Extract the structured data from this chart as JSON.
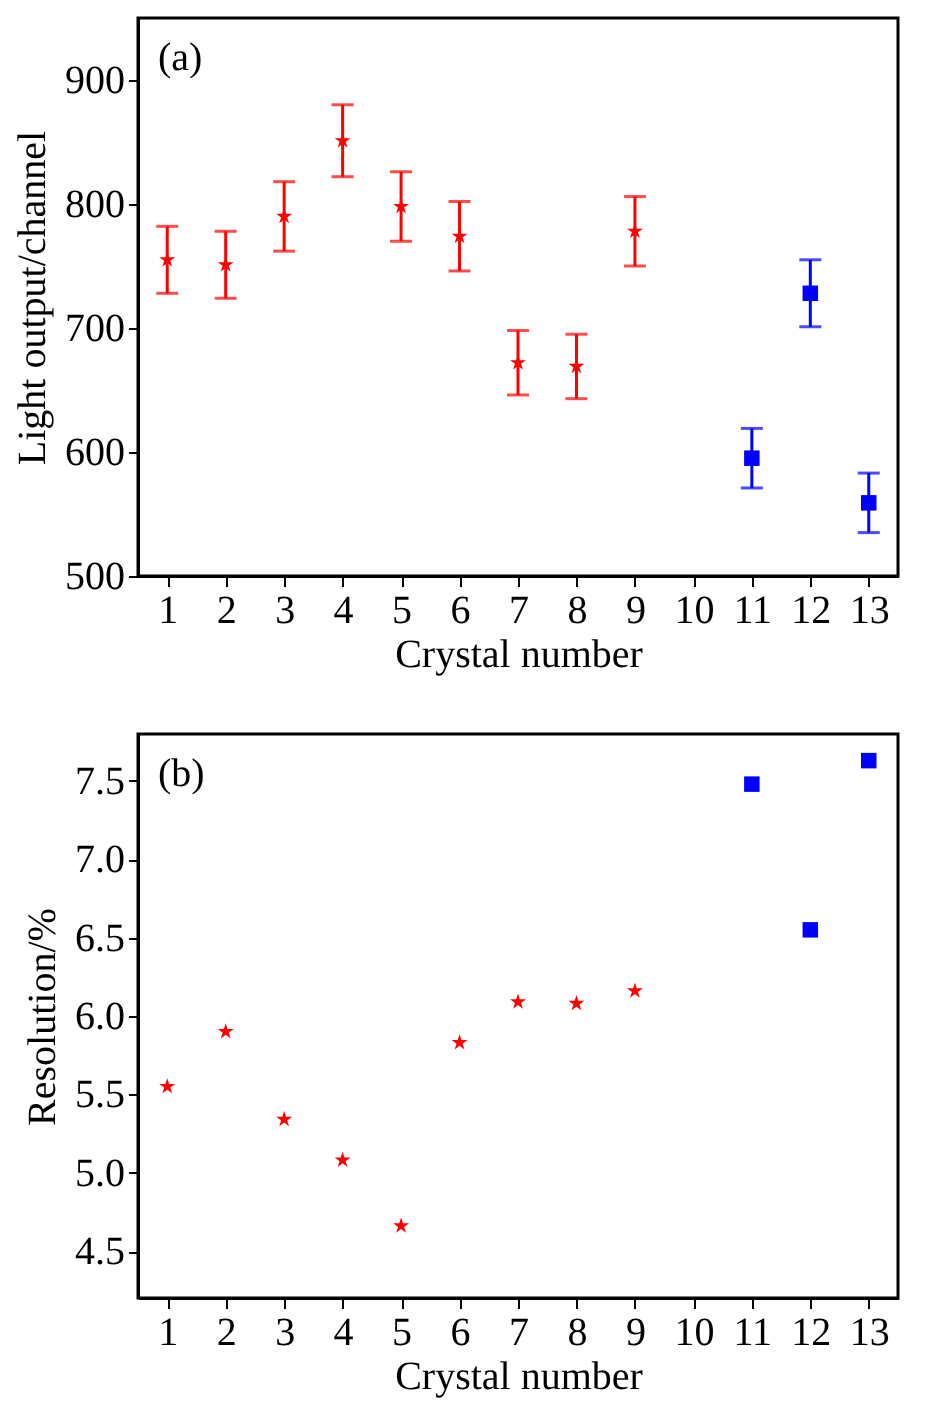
{
  "chart_data": [
    {
      "type": "scatter",
      "xlabel": "Crystal number",
      "ylabel": "Light output/channel",
      "annotations": [
        "(a)"
      ],
      "xlim": [
        0.5,
        13.5
      ],
      "xticks": [
        1,
        2,
        3,
        4,
        5,
        6,
        7,
        8,
        9,
        10,
        11,
        12,
        13
      ],
      "ylim": [
        500,
        950
      ],
      "yticks": [
        500,
        600,
        700,
        800,
        900
      ],
      "grid": false,
      "series": [
        {
          "color": "#ff0000",
          "marker": "star",
          "x": [
            1,
            2,
            3,
            4,
            5,
            6,
            7,
            8,
            9
          ],
          "values": [
            755,
            751,
            790,
            851,
            798,
            774,
            672,
            669,
            778
          ],
          "errors": [
            27,
            27,
            28,
            29,
            28,
            28,
            26,
            26,
            28
          ]
        },
        {
          "color": "#0000ff",
          "marker": "square",
          "x": [
            11,
            12,
            13
          ],
          "values": [
            595,
            728,
            559
          ],
          "errors": [
            24,
            27,
            24
          ]
        }
      ]
    },
    {
      "type": "scatter",
      "xlabel": "Crystal number",
      "ylabel": "Resolution/%",
      "annotations": [
        "(b)"
      ],
      "xlim": [
        0.5,
        13.5
      ],
      "xticks": [
        1,
        2,
        3,
        4,
        5,
        6,
        7,
        8,
        9,
        10,
        11,
        12,
        13
      ],
      "ylim": [
        4.2,
        7.8
      ],
      "yticks": [
        {
          "value": 4.5,
          "label": "4.5"
        },
        {
          "value": 5,
          "label": "5.0"
        },
        {
          "value": 5.5,
          "label": "5.5"
        },
        {
          "value": 6,
          "label": "6.0"
        },
        {
          "value": 6.5,
          "label": "6.5"
        },
        {
          "value": 7,
          "label": "7.0"
        },
        {
          "value": 7.5,
          "label": "7.5"
        }
      ],
      "grid": false,
      "series": [
        {
          "color": "#ff0000",
          "marker": "star",
          "x": [
            1,
            2,
            3,
            4,
            5,
            6,
            7,
            8,
            9
          ],
          "values": [
            5.55,
            5.9,
            5.34,
            5.08,
            4.66,
            5.83,
            6.09,
            6.08,
            6.16
          ]
        },
        {
          "color": "#0000ff",
          "marker": "square",
          "x": [
            11,
            12,
            13
          ],
          "values": [
            7.48,
            6.55,
            7.63
          ]
        }
      ]
    }
  ]
}
